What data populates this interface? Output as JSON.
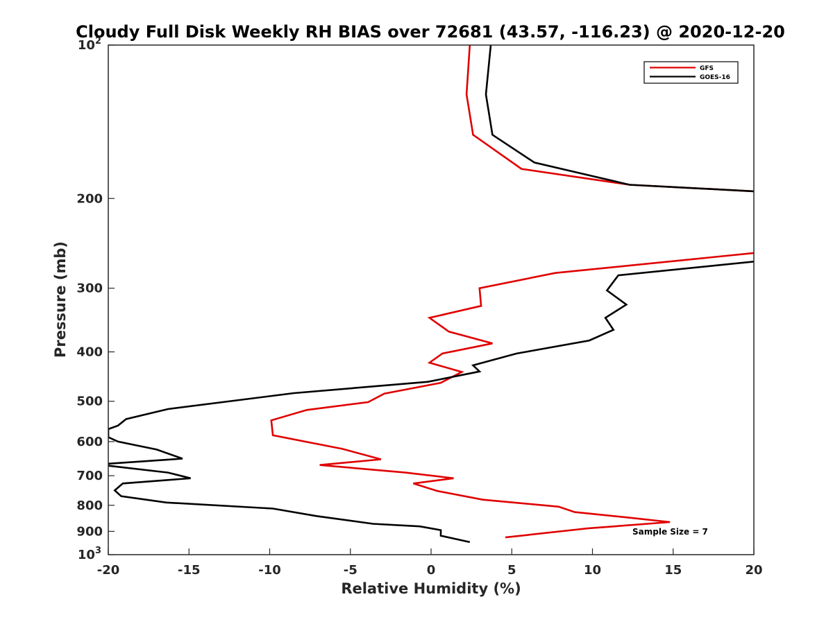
{
  "chart_data": {
    "type": "line",
    "title": "Cloudy Full Disk Weekly RH BIAS over 72681 (43.57, -116.23) @ 2020-12-20",
    "xlabel": "Relative Humidity (%)",
    "ylabel": "Pressure (mb)",
    "xlim": [
      -20,
      20
    ],
    "ylim": [
      100,
      1000
    ],
    "yscale": "log",
    "y_reversed": true,
    "grid": false,
    "legend_position": "top-right",
    "x_ticks": [
      {
        "value": -20,
        "label": "-20"
      },
      {
        "value": -15,
        "label": "-15"
      },
      {
        "value": -10,
        "label": "-10"
      },
      {
        "value": -5,
        "label": "-5"
      },
      {
        "value": 0,
        "label": "0"
      },
      {
        "value": 5,
        "label": "5"
      },
      {
        "value": 10,
        "label": "10"
      },
      {
        "value": 15,
        "label": "15"
      },
      {
        "value": 20,
        "label": "20"
      }
    ],
    "y_ticks": [
      {
        "value": 100,
        "label": "10",
        "sup": "2"
      },
      {
        "value": 200,
        "label": "200",
        "sup": ""
      },
      {
        "value": 300,
        "label": "300",
        "sup": ""
      },
      {
        "value": 400,
        "label": "400",
        "sup": ""
      },
      {
        "value": 500,
        "label": "500",
        "sup": ""
      },
      {
        "value": 600,
        "label": "600",
        "sup": ""
      },
      {
        "value": 700,
        "label": "700",
        "sup": ""
      },
      {
        "value": 800,
        "label": "800",
        "sup": ""
      },
      {
        "value": 900,
        "label": "900",
        "sup": ""
      },
      {
        "value": 1000,
        "label": "10",
        "sup": "3"
      }
    ],
    "series": [
      {
        "name": "GFS",
        "color": "#e00000",
        "points": [
          [
            2.4,
            100
          ],
          [
            2.2,
            125
          ],
          [
            2.6,
            150
          ],
          [
            5.6,
            175
          ],
          [
            12.3,
            188
          ],
          [
            20.5,
            194
          ],
          [
            20.5,
            255
          ],
          [
            7.7,
            280
          ],
          [
            3.0,
            300
          ],
          [
            3.1,
            325
          ],
          [
            -0.1,
            343
          ],
          [
            1.1,
            365
          ],
          [
            3.8,
            385
          ],
          [
            0.7,
            403
          ],
          [
            -0.1,
            420
          ],
          [
            1.9,
            438
          ],
          [
            0.6,
            460
          ],
          [
            -2.9,
            483
          ],
          [
            -3.9,
            502
          ],
          [
            -7.7,
            520
          ],
          [
            -9.9,
            545
          ],
          [
            -9.8,
            583
          ],
          [
            -5.5,
            620
          ],
          [
            -3.1,
            650
          ],
          [
            -6.9,
            667
          ],
          [
            -1.6,
            690
          ],
          [
            1.4,
            708
          ],
          [
            -1.1,
            725
          ],
          [
            0.4,
            750
          ],
          [
            3.2,
            780
          ],
          [
            7.9,
            805
          ],
          [
            8.9,
            825
          ],
          [
            12.1,
            845
          ],
          [
            14.8,
            863
          ],
          [
            9.7,
            888
          ],
          [
            4.6,
            925
          ]
        ]
      },
      {
        "name": "GOES-16",
        "color": "#000000",
        "points": [
          [
            3.7,
            100
          ],
          [
            3.4,
            125
          ],
          [
            3.8,
            150
          ],
          [
            6.4,
            170
          ],
          [
            12.3,
            188
          ],
          [
            20.5,
            194
          ],
          [
            20.5,
            265
          ],
          [
            11.6,
            283
          ],
          [
            10.9,
            303
          ],
          [
            12.1,
            323
          ],
          [
            10.8,
            343
          ],
          [
            11.3,
            362
          ],
          [
            9.8,
            380
          ],
          [
            5.3,
            403
          ],
          [
            2.6,
            425
          ],
          [
            3.0,
            437
          ],
          [
            -0.2,
            458
          ],
          [
            -8.5,
            482
          ],
          [
            -16.3,
            518
          ],
          [
            -18.9,
            542
          ],
          [
            -19.4,
            558
          ],
          [
            -20.0,
            567
          ],
          [
            -20.0,
            588
          ],
          [
            -19.4,
            600
          ],
          [
            -17.0,
            622
          ],
          [
            -15.4,
            648
          ],
          [
            -20.0,
            663
          ],
          [
            -20.0,
            669
          ],
          [
            -16.3,
            690
          ],
          [
            -14.9,
            708
          ],
          [
            -19.1,
            725
          ],
          [
            -19.6,
            748
          ],
          [
            -19.2,
            768
          ],
          [
            -16.4,
            790
          ],
          [
            -9.8,
            812
          ],
          [
            -7.1,
            840
          ],
          [
            -3.6,
            870
          ],
          [
            -0.7,
            880
          ],
          [
            0.6,
            895
          ],
          [
            0.6,
            918
          ],
          [
            2.4,
            945
          ]
        ]
      }
    ],
    "annotations": [
      {
        "text": "Sample Size = 7"
      }
    ]
  }
}
